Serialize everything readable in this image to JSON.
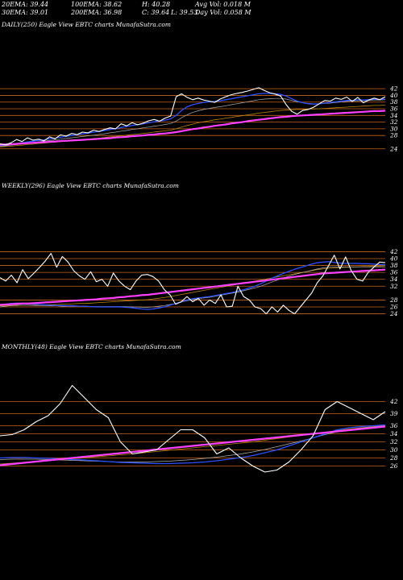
{
  "stats": [
    {
      "id": "ema20",
      "text": "20EMA: 39.44"
    },
    {
      "id": "ema100",
      "text": "100EMA: 38.62"
    },
    {
      "id": "high",
      "text": "H: 40.28"
    },
    {
      "id": "avgvol",
      "text": "Avg Vol: 0.018  M"
    },
    {
      "id": "ema30",
      "text": "30EMA: 39.01"
    },
    {
      "id": "ema200",
      "text": "200EMA: 36.98"
    },
    {
      "id": "close",
      "text": "C: 39.64"
    },
    {
      "id": "low",
      "text": "L: 39.53"
    },
    {
      "id": "dayvol",
      "text": "Day Vol: 0.058  M"
    }
  ],
  "colors": {
    "background": "#000000",
    "price": "#ffffff",
    "ema_fast": "#1f3fd8",
    "ema_slow": "#ff40ff",
    "grid": "#c8641e",
    "ema_gold": "#b8860b"
  },
  "chart_data": [
    {
      "type": "line",
      "title": "DAILY(250) Eagle   View  EBTC charts MunafaSutra.com",
      "ylim": [
        22.5,
        43
      ],
      "y_ticks": [
        24,
        28,
        30,
        32,
        34,
        36,
        38,
        40,
        42
      ],
      "grid": true,
      "series": [
        {
          "role": "price",
          "color": "#ffffff",
          "values": [
            25.5,
            25.2,
            25.8,
            26.8,
            26.2,
            27.3,
            26.6,
            26.9,
            26.4,
            27.6,
            27.0,
            28.2,
            27.8,
            28.6,
            28.3,
            29.0,
            28.8,
            29.6,
            29.2,
            29.8,
            30.3,
            30.0,
            31.5,
            30.9,
            31.8,
            31.2,
            31.7,
            32.4,
            32.8,
            32.3,
            33.2,
            33.8,
            39.6,
            40.5,
            39.4,
            38.7,
            39.2,
            38.6,
            38.3,
            37.9,
            38.9,
            39.6,
            40.2,
            40.6,
            40.9,
            41.3,
            41.8,
            42.3,
            41.5,
            40.8,
            40.4,
            39.8,
            37.2,
            35.2,
            34.4,
            35.5,
            35.8,
            36.5,
            37.5,
            38.5,
            38.3,
            39.2,
            38.8,
            39.5,
            38.2,
            39.4,
            37.8,
            38.6,
            39.2,
            38.7,
            39.6
          ]
        },
        {
          "role": "ema-blue",
          "color": "#2d4fff",
          "width": 1.3,
          "values": [
            25.0,
            25.1,
            25.3,
            25.6,
            25.8,
            26.1,
            26.3,
            26.5,
            26.7,
            27.0,
            27.2,
            27.5,
            27.7,
            28.0,
            28.2,
            28.5,
            28.7,
            29.0,
            29.2,
            29.5,
            29.8,
            30.0,
            30.4,
            30.7,
            31.0,
            31.2,
            31.5,
            31.8,
            32.1,
            32.3,
            32.6,
            33.0,
            34.0,
            35.5,
            36.6,
            37.2,
            37.6,
            37.9,
            38.1,
            38.2,
            38.4,
            38.7,
            39.0,
            39.3,
            39.6,
            39.9,
            40.2,
            40.5,
            40.6,
            40.6,
            40.5,
            40.3,
            39.8,
            39.0,
            38.3,
            37.8,
            37.5,
            37.4,
            37.5,
            37.7,
            37.9,
            38.1,
            38.3,
            38.5,
            38.5,
            38.7,
            38.6,
            38.7,
            38.8,
            38.8,
            38.9
          ]
        },
        {
          "role": "ema-30",
          "color": "#b0b0b0",
          "width": 0.7,
          "values": [
            24.8,
            24.9,
            25.1,
            25.3,
            25.5,
            25.7,
            25.9,
            26.1,
            26.3,
            26.5,
            26.7,
            26.9,
            27.1,
            27.3,
            27.5,
            27.7,
            27.9,
            28.1,
            28.3,
            28.5,
            28.8,
            29.0,
            29.3,
            29.5,
            29.8,
            30.0,
            30.3,
            30.5,
            30.8,
            31.0,
            31.3,
            31.6,
            32.3,
            33.3,
            34.2,
            34.9,
            35.4,
            35.8,
            36.1,
            36.4,
            36.6,
            36.9,
            37.2,
            37.5,
            37.8,
            38.1,
            38.4,
            38.7,
            38.9,
            39.0,
            39.1,
            39.1,
            38.9,
            38.5,
            38.1,
            37.8,
            37.6,
            37.5,
            37.5,
            37.6,
            37.7,
            37.9,
            38.0,
            38.2,
            38.3,
            38.4,
            38.4,
            38.5,
            38.6,
            38.6,
            38.7
          ]
        },
        {
          "role": "ema-100",
          "color": "#b8860b",
          "width": 0.8,
          "values": [
            24.6,
            24.7,
            24.8,
            25.0,
            25.1,
            25.3,
            25.4,
            25.6,
            25.7,
            25.9,
            26.0,
            26.2,
            26.3,
            26.5,
            26.6,
            26.8,
            26.9,
            27.1,
            27.2,
            27.4,
            27.6,
            27.7,
            27.9,
            28.1,
            28.3,
            28.4,
            28.6,
            28.8,
            29.0,
            29.2,
            29.4,
            29.6,
            30.0,
            30.5,
            31.0,
            31.4,
            31.8,
            32.1,
            32.4,
            32.7,
            32.9,
            33.2,
            33.4,
            33.7,
            33.9,
            34.2,
            34.4,
            34.7,
            34.9,
            35.1,
            35.3,
            35.5,
            35.6,
            35.7,
            35.8,
            35.8,
            35.9,
            35.9,
            36.0,
            36.1,
            36.2,
            36.3,
            36.4,
            36.5,
            36.6,
            36.7,
            36.8,
            36.9,
            37.0,
            37.0,
            37.1
          ]
        },
        {
          "role": "ema-200",
          "color": "#ff40ff",
          "width": 2.2,
          "values": [
            25.3,
            25.3,
            25.4,
            25.5,
            25.6,
            25.7,
            25.8,
            25.9,
            26.0,
            26.1,
            26.2,
            26.3,
            26.4,
            26.5,
            26.6,
            26.7,
            26.8,
            26.9,
            27.0,
            27.1,
            27.2,
            27.4,
            27.5,
            27.6,
            27.8,
            27.9,
            28.0,
            28.2,
            28.3,
            28.5,
            28.6,
            28.8,
            29.0,
            29.3,
            29.6,
            29.9,
            30.1,
            30.4,
            30.6,
            30.9,
            31.1,
            31.3,
            31.6,
            31.8,
            32.0,
            32.3,
            32.5,
            32.7,
            32.9,
            33.1,
            33.3,
            33.5,
            33.6,
            33.8,
            33.9,
            34.0,
            34.1,
            34.2,
            34.3,
            34.4,
            34.5,
            34.6,
            34.7,
            34.8,
            34.9,
            35.0,
            35.1,
            35.2,
            35.3,
            35.3,
            35.4
          ]
        }
      ]
    },
    {
      "type": "line",
      "title": "WEEKLY(296) Eagle   View  EBTC charts MunafaSutra.com",
      "ylim": [
        22.5,
        43.5
      ],
      "y_ticks": [
        24,
        26,
        28,
        32,
        34,
        36,
        38,
        40,
        42
      ],
      "grid": true,
      "series": [
        {
          "role": "price",
          "color": "#ffffff",
          "values": [
            34.5,
            33.5,
            35.2,
            33.0,
            36.8,
            34.2,
            35.8,
            37.5,
            39.3,
            41.5,
            37.5,
            40.6,
            39.0,
            36.5,
            35.0,
            34.0,
            36.2,
            33.3,
            34.0,
            32.0,
            35.8,
            33.5,
            32.0,
            31.0,
            33.5,
            35.2,
            35.4,
            34.8,
            33.5,
            31.0,
            29.5,
            26.8,
            27.5,
            29.0,
            27.5,
            28.5,
            26.5,
            28.0,
            27.0,
            29.5,
            26.0,
            26.2,
            32.0,
            29.0,
            28.0,
            26.0,
            25.5,
            24.0,
            26.0,
            24.5,
            26.5,
            25.0,
            24.0,
            26.0,
            28.0,
            30.0,
            33.0,
            35.0,
            38.0,
            41.0,
            37.0,
            40.5,
            36.5,
            34.0,
            33.5,
            36.0,
            37.5,
            39.0,
            38.8
          ]
        },
        {
          "role": "ema-blue",
          "color": "#2d4fff",
          "width": 1.3,
          "values": [
            26.5,
            26.8,
            27.0,
            27.1,
            27.0,
            26.9,
            26.8,
            26.7,
            26.6,
            26.5,
            26.4,
            26.4,
            26.3,
            26.3,
            26.2,
            26.2,
            26.1,
            26.0,
            26.0,
            26.0,
            26.0,
            26.0,
            25.9,
            25.8,
            25.6,
            25.4,
            25.3,
            25.4,
            25.7,
            26.0,
            26.5,
            27.0,
            27.5,
            28.0,
            28.4,
            28.6,
            28.8,
            29.0,
            29.3,
            29.6,
            29.9,
            30.2,
            30.6,
            31.0,
            31.5,
            32.0,
            32.7,
            33.5,
            34.3,
            35.0,
            35.7,
            36.3,
            36.9,
            37.4,
            37.9,
            38.4,
            38.8,
            39.0,
            39.1,
            38.9,
            38.7,
            38.6,
            38.6,
            38.6,
            38.5,
            38.5,
            38.4,
            38.3,
            38.2
          ]
        },
        {
          "role": "ema-30",
          "color": "#b0b0b0",
          "width": 0.7,
          "values": [
            26.0,
            26.2,
            26.4,
            26.5,
            26.5,
            26.5,
            26.4,
            26.4,
            26.3,
            26.3,
            26.3,
            26.2,
            26.2,
            26.2,
            26.2,
            26.2,
            26.1,
            26.1,
            26.1,
            26.1,
            26.1,
            26.1,
            26.1,
            26.0,
            26.0,
            25.9,
            25.9,
            26.0,
            26.2,
            26.4,
            26.7,
            27.0,
            27.4,
            27.8,
            28.1,
            28.4,
            28.6,
            28.8,
            29.1,
            29.4,
            29.7,
            30.0,
            30.3,
            30.7,
            31.1,
            31.5,
            32.0,
            32.6,
            33.2,
            33.8,
            34.4,
            34.9,
            35.4,
            35.8,
            36.2,
            36.6,
            37.0,
            37.3,
            37.5,
            37.6,
            37.6,
            37.6,
            37.6,
            37.6,
            37.6,
            37.6,
            37.6,
            37.6,
            37.6
          ]
        },
        {
          "role": "ema-100",
          "color": "#b8860b",
          "width": 0.8,
          "values": [
            26.3,
            26.3,
            26.4,
            26.4,
            26.5,
            26.5,
            26.5,
            26.6,
            26.6,
            26.7,
            26.7,
            26.8,
            26.8,
            26.9,
            27.0,
            27.0,
            27.1,
            27.2,
            27.3,
            27.4,
            27.5,
            27.6,
            27.7,
            27.8,
            27.9,
            28.0,
            28.1,
            28.3,
            28.5,
            28.7,
            29.0,
            29.3,
            29.6,
            29.9,
            30.2,
            30.5,
            30.8,
            31.1,
            31.4,
            31.7,
            32.0,
            32.3,
            32.6,
            32.9,
            33.2,
            33.5,
            33.8,
            34.1,
            34.4,
            34.7,
            35.0,
            35.3,
            35.6,
            35.9,
            36.2,
            36.5,
            36.8,
            37.0,
            37.2,
            37.3,
            37.4,
            37.5,
            37.6,
            37.6,
            37.7,
            37.7,
            37.8,
            37.8,
            37.9
          ]
        },
        {
          "role": "ema-200",
          "color": "#ff40ff",
          "width": 2.2,
          "values": [
            26.6,
            26.7,
            26.8,
            26.9,
            27.0,
            27.0,
            27.1,
            27.2,
            27.3,
            27.4,
            27.5,
            27.6,
            27.7,
            27.8,
            27.9,
            28.0,
            28.1,
            28.2,
            28.4,
            28.5,
            28.6,
            28.8,
            28.9,
            29.1,
            29.2,
            29.4,
            29.5,
            29.7,
            29.9,
            30.1,
            30.3,
            30.5,
            30.7,
            30.9,
            31.1,
            31.3,
            31.5,
            31.7,
            31.9,
            32.1,
            32.3,
            32.5,
            32.7,
            32.9,
            33.1,
            33.3,
            33.5,
            33.7,
            33.9,
            34.1,
            34.3,
            34.5,
            34.7,
            34.9,
            35.1,
            35.3,
            35.5,
            35.7,
            35.8,
            35.9,
            36.0,
            36.1,
            36.2,
            36.3,
            36.4,
            36.5,
            36.6,
            36.7,
            36.8
          ]
        }
      ]
    },
    {
      "type": "line",
      "title": "MONTHLY(48) Eagle   View  EBTC charts MunafaSutra.com",
      "ylim": [
        23.5,
        44.5
      ],
      "y_ticks": [
        26,
        28,
        30,
        32,
        34,
        36,
        39,
        42
      ],
      "grid": true,
      "series": [
        {
          "role": "price",
          "color": "#ffffff",
          "values": [
            33.5,
            33.8,
            35.0,
            37.0,
            38.5,
            41.5,
            46.0,
            43.0,
            40.0,
            38.0,
            32.0,
            29.0,
            29.5,
            30.0,
            32.5,
            35.0,
            35.0,
            33.0,
            29.0,
            30.5,
            28.0,
            26.0,
            24.5,
            25.0,
            27.0,
            30.0,
            33.5,
            40.0,
            42.0,
            40.5,
            39.0,
            37.5,
            39.5
          ]
        },
        {
          "role": "ema-blue",
          "color": "#2d4fff",
          "width": 1.3,
          "values": [
            28.0,
            28.1,
            28.1,
            28.0,
            27.9,
            27.8,
            27.6,
            27.5,
            27.3,
            27.1,
            26.9,
            26.8,
            26.7,
            26.6,
            26.6,
            26.7,
            26.8,
            27.0,
            27.3,
            27.7,
            28.1,
            28.6,
            29.3,
            30.0,
            31.0,
            32.0,
            33.0,
            34.0,
            35.0,
            35.5,
            35.8,
            36.0,
            36.2
          ]
        },
        {
          "role": "ema-30",
          "color": "#b0b0b0",
          "width": 0.7,
          "values": [
            27.6,
            27.7,
            27.7,
            27.7,
            27.6,
            27.5,
            27.4,
            27.3,
            27.2,
            27.1,
            27.0,
            27.0,
            27.0,
            27.1,
            27.2,
            27.4,
            27.6,
            27.9,
            28.2,
            28.6,
            29.0,
            29.5,
            30.1,
            30.8,
            31.5,
            32.2,
            33.0,
            33.8,
            34.5,
            35.0,
            35.4,
            35.7,
            36.0
          ]
        },
        {
          "role": "ema-100",
          "color": "#b8860b",
          "width": 0.8,
          "values": [
            26.5,
            26.7,
            26.9,
            27.1,
            27.3,
            27.6,
            27.8,
            28.0,
            28.3,
            28.5,
            28.8,
            29.0,
            29.3,
            29.6,
            29.9,
            30.2,
            30.5,
            30.8,
            31.1,
            31.4,
            31.7,
            32.0,
            32.4,
            32.8,
            33.2,
            33.6,
            34.0,
            34.4,
            34.8,
            35.2,
            35.5,
            35.8,
            36.1
          ]
        },
        {
          "role": "ema-200",
          "color": "#ff40ff",
          "width": 2.2,
          "values": [
            26.2,
            26.5,
            26.8,
            27.1,
            27.4,
            27.7,
            28.0,
            28.3,
            28.6,
            28.9,
            29.2,
            29.5,
            29.8,
            30.1,
            30.4,
            30.7,
            31.0,
            31.3,
            31.6,
            31.9,
            32.2,
            32.5,
            32.8,
            33.1,
            33.4,
            33.7,
            34.0,
            34.3,
            34.6,
            34.9,
            35.2,
            35.5,
            35.8
          ]
        }
      ]
    }
  ]
}
